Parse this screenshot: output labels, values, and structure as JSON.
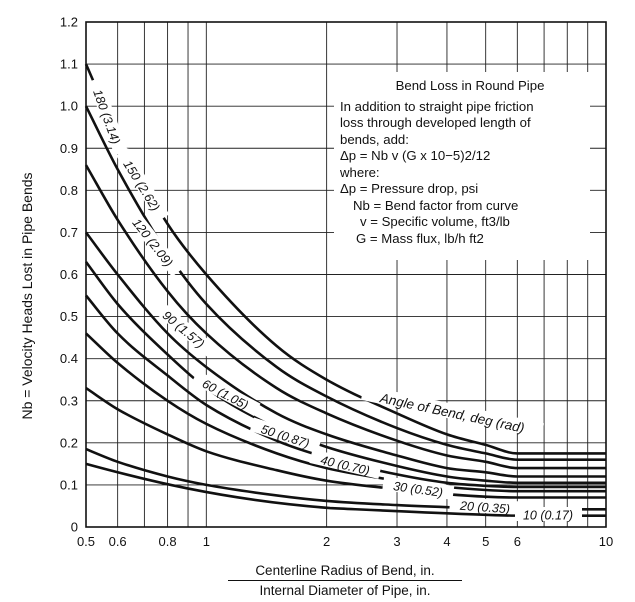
{
  "chart_data": {
    "type": "line",
    "x_scale": "log",
    "xlim": [
      0.5,
      10
    ],
    "ylim": [
      0,
      1.2
    ],
    "grid": true,
    "x_ticks": [
      0.5,
      0.6,
      0.8,
      1,
      2,
      3,
      4,
      5,
      6,
      10
    ],
    "x_tick_labels": [
      "0.5",
      "0.6",
      "0.8",
      "1",
      "2",
      "3",
      "4",
      "5",
      "6",
      "10"
    ],
    "y_ticks": [
      0,
      0.1,
      0.2,
      0.3,
      0.4,
      0.5,
      0.6,
      0.7,
      0.8,
      0.9,
      1.0,
      1.1,
      1.2
    ],
    "y_tick_labels": [
      "0",
      "0.1",
      "0.2",
      "0.3",
      "0.4",
      "0.5",
      "0.6",
      "0.7",
      "0.8",
      "0.9",
      "1.0",
      "1.1",
      "1.2"
    ],
    "x": [
      0.5,
      0.6,
      0.8,
      1,
      1.5,
      2,
      3,
      4,
      5,
      6,
      8,
      10
    ],
    "series": [
      {
        "name": "180 (3.14)",
        "values": [
          1.1,
          0.93,
          0.72,
          0.6,
          0.43,
          0.35,
          0.27,
          0.22,
          0.195,
          0.175,
          0.175,
          0.175
        ]
      },
      {
        "name": "150 (2.62)",
        "values": [
          1.0,
          0.85,
          0.65,
          0.53,
          0.38,
          0.31,
          0.235,
          0.195,
          0.175,
          0.16,
          0.16,
          0.16
        ]
      },
      {
        "name": "120 (2.09)",
        "values": [
          0.86,
          0.73,
          0.56,
          0.46,
          0.33,
          0.27,
          0.205,
          0.17,
          0.155,
          0.14,
          0.14,
          0.14
        ]
      },
      {
        "name": "90 (1.57)",
        "values": [
          0.7,
          0.6,
          0.46,
          0.38,
          0.27,
          0.22,
          0.17,
          0.14,
          0.13,
          0.12,
          0.12,
          0.12
        ]
      },
      {
        "name": "60 (1.05)",
        "values": [
          0.63,
          0.53,
          0.41,
          0.33,
          0.235,
          0.19,
          0.145,
          0.12,
          0.11,
          0.105,
          0.105,
          0.105
        ]
      },
      {
        "name": "50 (0.87)",
        "values": [
          0.55,
          0.46,
          0.36,
          0.29,
          0.205,
          0.165,
          0.125,
          0.105,
          0.098,
          0.095,
          0.095,
          0.095
        ]
      },
      {
        "name": "40 (0.70)",
        "values": [
          0.46,
          0.39,
          0.3,
          0.245,
          0.175,
          0.14,
          0.11,
          0.095,
          0.088,
          0.085,
          0.085,
          0.085
        ]
      },
      {
        "name": "30 (0.52)",
        "values": [
          0.33,
          0.28,
          0.22,
          0.18,
          0.135,
          0.11,
          0.09,
          0.078,
          0.072,
          0.07,
          0.07,
          0.07
        ]
      },
      {
        "name": "20 (0.35)",
        "values": [
          0.185,
          0.155,
          0.12,
          0.1,
          0.075,
          0.062,
          0.052,
          0.047,
          0.044,
          0.042,
          0.042,
          0.042
        ]
      }
    ],
    "annotations": [
      "Angle of Bend, deg (rad)",
      "10 (0.17)"
    ],
    "xlabel_numerator": "Centerline Radius of Bend, in.",
    "xlabel_denominator": "Internal Diameter of Pipe, in.",
    "ylabel": "Nb = Velocity Heads Lost in Pipe Bends"
  },
  "legend_text": {
    "title": "Bend Loss in Round Pipe",
    "lines": [
      "In addition to straight pipe friction",
      "loss through developed length of",
      "bends, add:"
    ],
    "formula": "Δp = Nb v (G x 10−5)2/12",
    "where": "where:",
    "defs": [
      "Δp = Pressure drop, psi",
      "Nb = Bend factor from curve",
      "v = Specific volume, ft3/lb",
      "G = Mass flux, lb/h ft2"
    ]
  },
  "colors": {
    "line": "#111111",
    "grid": "#222222",
    "background": "#ffffff"
  }
}
